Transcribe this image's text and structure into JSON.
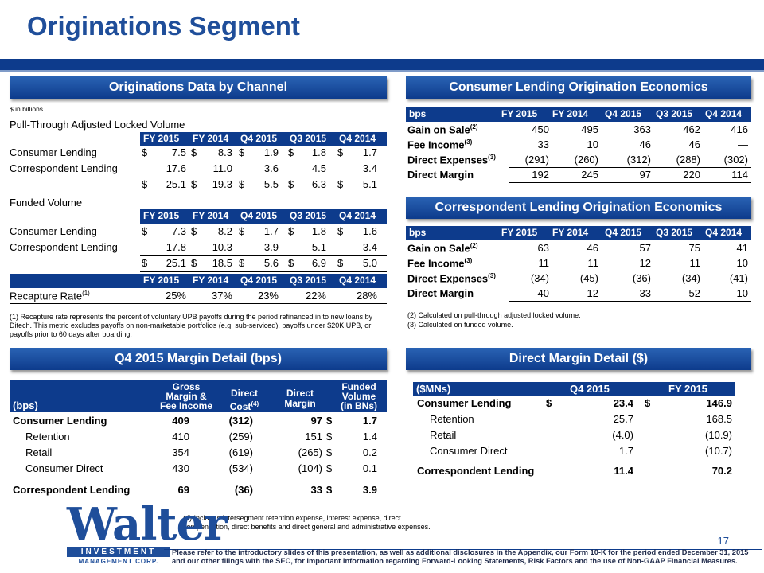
{
  "page": {
    "title": "Originations Segment",
    "page_number": "17",
    "disclaimer": "Please refer to the introductory slides of this presentation, as well as additional disclosures in the Appendix, our Form 10-K for the period ended December 31, 2015 and our other filings with the SEC, for important information regarding Forward-Looking Statements, Risk Factors and the use of Non-GAAP Financial Measures."
  },
  "channel": {
    "banner": "Originations Data by Channel",
    "unit_note": "$ in billions",
    "cols": [
      "FY 2015",
      "FY 2014",
      "Q4 2015",
      "Q3 2015",
      "Q4 2014"
    ],
    "pull_title": "Pull-Through Adjusted Locked Volume",
    "pull_rows": [
      {
        "label": "Consumer Lending",
        "vals": [
          "7.5",
          "8.3",
          "1.9",
          "1.8",
          "1.7"
        ],
        "dollar": true
      },
      {
        "label": "Correspondent Lending",
        "vals": [
          "17.6",
          "11.0",
          "3.6",
          "4.5",
          "3.4"
        ],
        "dollar": false
      },
      {
        "label": "",
        "vals": [
          "25.1",
          "19.3",
          "5.5",
          "6.3",
          "5.1"
        ],
        "dollar": true
      }
    ],
    "funded_title": "Funded Volume",
    "funded_rows": [
      {
        "label": "Consumer Lending",
        "vals": [
          "7.3",
          "8.2",
          "1.7",
          "1.8",
          "1.6"
        ],
        "dollar": true
      },
      {
        "label": "Correspondent Lending",
        "vals": [
          "17.8",
          "10.3",
          "3.9",
          "5.1",
          "3.4"
        ],
        "dollar": false
      },
      {
        "label": "",
        "vals": [
          "25.1",
          "18.5",
          "5.6",
          "6.9",
          "5.0"
        ],
        "dollar": true
      }
    ],
    "recapture_label": "Recapture Rate",
    "recapture_sup": "(1)",
    "recapture_vals": [
      "25%",
      "37%",
      "23%",
      "22%",
      "28%"
    ],
    "footnote": "(1) Recapture rate represents the percent of voluntary UPB payoffs during the period refinanced in to new loans by Ditech.  This metric excludes payoffs on non-marketable portfolios (e.g. sub-serviced), payoffs under $20K UPB, or payoffs prior to 60 days after boarding."
  },
  "consumer_econ": {
    "banner": "Consumer Lending Origination Economics",
    "cols": [
      "bps",
      "FY 2015",
      "FY 2014",
      "Q4 2015",
      "Q3 2015",
      "Q4 2014"
    ],
    "rows": [
      {
        "label": "Gain on Sale",
        "sup": "(2)",
        "vals": [
          "450",
          "495",
          "363",
          "462",
          "416"
        ]
      },
      {
        "label": "Fee Income",
        "sup": "(3)",
        "vals": [
          "33",
          "10",
          "46",
          "46",
          "—"
        ]
      },
      {
        "label": "Direct Expenses",
        "sup": "(3)",
        "vals": [
          "(291)",
          "(260)",
          "(312)",
          "(288)",
          "(302)"
        ]
      },
      {
        "label": "Direct Margin",
        "sup": "",
        "vals": [
          "192",
          "245",
          "97",
          "220",
          "114"
        ]
      }
    ]
  },
  "corr_econ": {
    "banner": "Correspondent Lending Origination Economics",
    "cols": [
      "bps",
      "FY 2015",
      "FY 2014",
      "Q4 2015",
      "Q3 2015",
      "Q4 2014"
    ],
    "rows": [
      {
        "label": "Gain on Sale",
        "sup": "(2)",
        "vals": [
          "63",
          "46",
          "57",
          "75",
          "41"
        ]
      },
      {
        "label": "Fee Income",
        "sup": "(3)",
        "vals": [
          "11",
          "11",
          "12",
          "11",
          "10"
        ]
      },
      {
        "label": "Direct Expenses",
        "sup": "(3)",
        "vals": [
          "(34)",
          "(45)",
          "(36)",
          "(34)",
          "(41)"
        ]
      },
      {
        "label": "Direct Margin",
        "sup": "",
        "vals": [
          "40",
          "12",
          "33",
          "52",
          "10"
        ]
      }
    ],
    "notes": [
      "(2) Calculated on pull-through adjusted locked volume.",
      "(3) Calculated on funded volume."
    ]
  },
  "margin": {
    "banner": "Q4 2015 Margin Detail (bps)",
    "h_bps": "(bps)",
    "h_gross": [
      "Gross",
      "Margin &",
      "Fee Income"
    ],
    "h_cost": "Direct",
    "h_cost2": "Cost",
    "h_cost_sup": "(4)",
    "h_margin": [
      "Direct",
      "Margin"
    ],
    "h_funded": [
      "Funded",
      "Volume",
      "(in BNs)"
    ],
    "rows": [
      {
        "label": "Consumer Lending",
        "gross": "409",
        "cost": "(312)",
        "margin": "97",
        "funded": "1.7",
        "bold": true,
        "indent": false
      },
      {
        "label": "Retention",
        "gross": "410",
        "cost": "(259)",
        "margin": "151",
        "funded": "1.4",
        "bold": false,
        "indent": true
      },
      {
        "label": "Retail",
        "gross": "354",
        "cost": "(619)",
        "margin": "(265)",
        "funded": "0.2",
        "bold": false,
        "indent": true
      },
      {
        "label": "Consumer Direct",
        "gross": "430",
        "cost": "(534)",
        "margin": "(104)",
        "funded": "0.1",
        "bold": false,
        "indent": true
      },
      {
        "label": "Correspondent Lending",
        "gross": "69",
        "cost": "(36)",
        "margin": "33",
        "funded": "3.9",
        "bold": true,
        "indent": false
      }
    ],
    "note": "(4) Includes intersegment retention expense, interest expense, direct compensation, direct benefits and direct general and administrative expenses."
  },
  "direct": {
    "banner": "Direct Margin Detail ($)",
    "cols": [
      "($MNs)",
      "Q4 2015",
      "FY 2015"
    ],
    "rows": [
      {
        "label": "Consumer Lending",
        "q4": "23.4",
        "fy": "146.9",
        "bold": true,
        "indent": false,
        "dollar": true
      },
      {
        "label": "Retention",
        "q4": "25.7",
        "fy": "168.5",
        "bold": false,
        "indent": true,
        "dollar": false
      },
      {
        "label": "Retail",
        "q4": "(4.0)",
        "fy": "(10.9)",
        "bold": false,
        "indent": true,
        "dollar": false
      },
      {
        "label": "Consumer Direct",
        "q4": "1.7",
        "fy": "(10.7)",
        "bold": false,
        "indent": true,
        "dollar": false
      },
      {
        "label": "Correspondent Lending",
        "q4": "11.4",
        "fy": "70.2",
        "bold": true,
        "indent": false,
        "dollar": false
      }
    ]
  },
  "logo": {
    "name": "Walter",
    "sub": "INVESTMENT",
    "sub2": "MANAGEMENT CORP."
  },
  "colors": {
    "navy": "#0d3b8c",
    "title": "#1f4e9a"
  }
}
